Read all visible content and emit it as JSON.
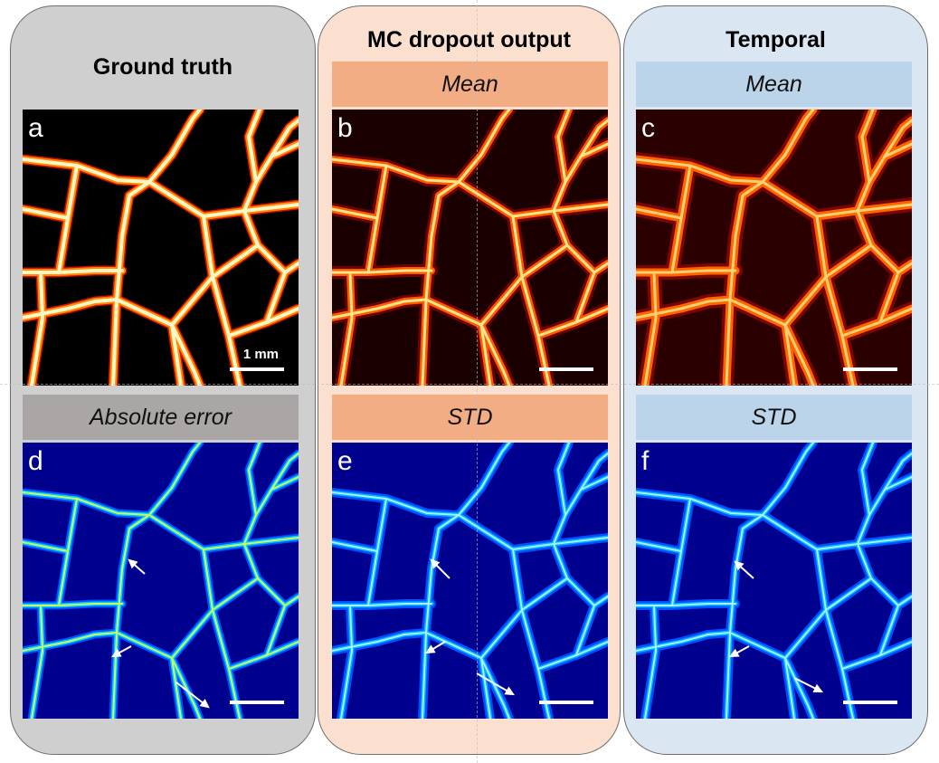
{
  "columns": {
    "ground_truth": {
      "title": "Ground truth",
      "bottom_label": "Absolute error"
    },
    "mc_dropout": {
      "title": "MC dropout output",
      "top_label": "Mean",
      "bottom_label": "STD"
    },
    "temporal": {
      "title": "Temporal",
      "top_label": "Mean",
      "bottom_label": "STD"
    }
  },
  "panels": [
    {
      "letter": "a",
      "kind": "binary-vessel-map"
    },
    {
      "letter": "b",
      "kind": "mean-vessel-map"
    },
    {
      "letter": "c",
      "kind": "mean-vessel-map"
    },
    {
      "letter": "d",
      "kind": "error-heatmap"
    },
    {
      "letter": "e",
      "kind": "std-heatmap"
    },
    {
      "letter": "f",
      "kind": "std-heatmap"
    }
  ],
  "scale_bar_label": "1 mm",
  "colors": {
    "ground_truth_panel": "#cfcfcf",
    "mc_dropout_panel": "#fbe0d0",
    "temporal_panel": "#dbe6f3",
    "hot_colormap_bg": "#000000",
    "jet_colormap_bg": "#00008f"
  }
}
